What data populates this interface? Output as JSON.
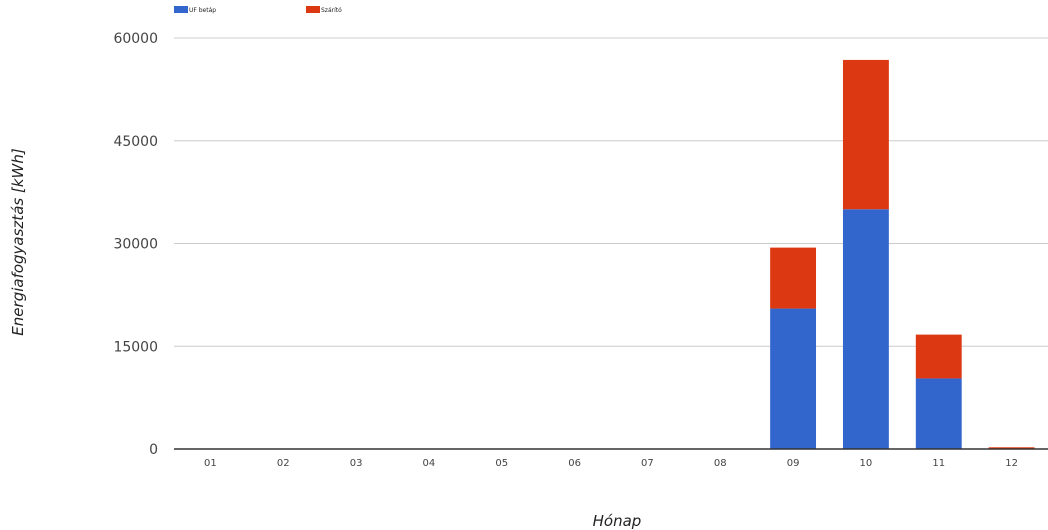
{
  "chart_data": {
    "type": "bar",
    "stacked": true,
    "categories": [
      "01",
      "02",
      "03",
      "04",
      "05",
      "06",
      "07",
      "08",
      "09",
      "10",
      "11",
      "12"
    ],
    "series": [
      {
        "name": "UF betáp",
        "color": "#3366cc",
        "values": [
          0,
          0,
          0,
          0,
          0,
          0,
          0,
          0,
          20500,
          35000,
          10300,
          0
        ]
      },
      {
        "name": "Szárító",
        "color": "#dc3912",
        "values": [
          0,
          0,
          0,
          0,
          0,
          0,
          0,
          0,
          8900,
          21800,
          6400,
          250
        ]
      }
    ],
    "xlabel": "Hónap",
    "ylabel": "Energiafogyasztás [kWh]",
    "ylim": [
      0,
      60000
    ],
    "yticks": [
      "0",
      "15000",
      "30000",
      "45000",
      "60000"
    ],
    "grid": true,
    "legend": "top-left"
  }
}
